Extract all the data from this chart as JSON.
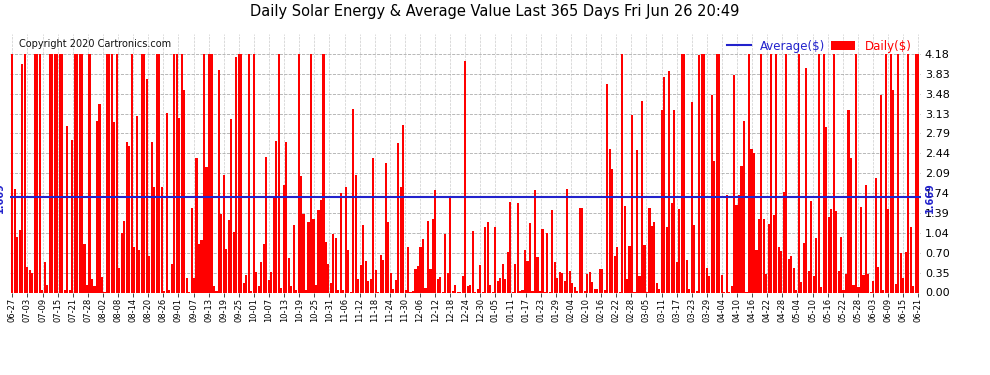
{
  "title": "Daily Solar Energy & Average Value Last 365 Days Fri Jun 26 20:49",
  "copyright": "Copyright 2020 Cartronics.com",
  "average_label": "Average($)",
  "daily_label": "Daily($)",
  "average_value": 1.669,
  "ylim": [
    0.0,
    4.53
  ],
  "yticks": [
    0.0,
    0.35,
    0.7,
    1.04,
    1.39,
    1.74,
    2.09,
    2.44,
    2.79,
    3.13,
    3.48,
    3.83,
    4.18
  ],
  "bar_color": "#ff0000",
  "average_line_color": "#2222cc",
  "background_color": "#ffffff",
  "grid_color": "#999999",
  "x_labels": [
    "06-27",
    "07-03",
    "07-09",
    "07-15",
    "07-21",
    "07-28",
    "08-02",
    "08-08",
    "08-14",
    "08-20",
    "08-26",
    "09-01",
    "09-07",
    "09-13",
    "09-19",
    "09-25",
    "10-01",
    "10-07",
    "10-13",
    "10-19",
    "10-25",
    "10-31",
    "11-06",
    "11-12",
    "11-18",
    "11-24",
    "11-30",
    "12-06",
    "12-12",
    "12-18",
    "12-24",
    "12-30",
    "01-05",
    "01-11",
    "01-17",
    "01-23",
    "01-29",
    "02-04",
    "02-10",
    "02-16",
    "02-22",
    "02-28",
    "03-05",
    "03-11",
    "03-17",
    "03-23",
    "03-29",
    "04-04",
    "04-10",
    "04-16",
    "04-22",
    "04-28",
    "05-04",
    "05-10",
    "05-16",
    "05-22",
    "05-28",
    "06-03",
    "06-09",
    "06-15",
    "06-21"
  ],
  "n_days": 365
}
